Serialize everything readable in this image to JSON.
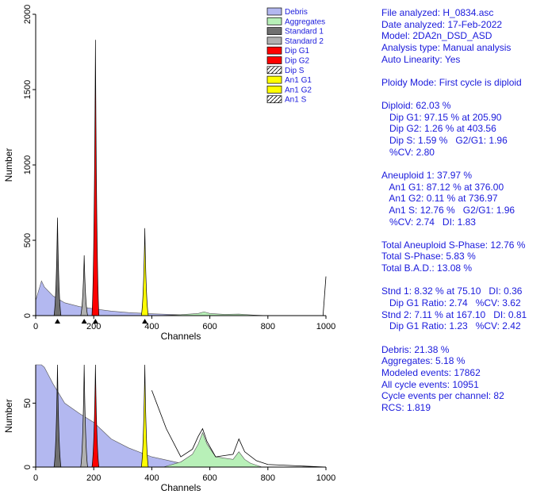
{
  "chart_data": [
    {
      "type": "area",
      "panel": "main histogram",
      "xlabel": "Channels",
      "ylabel": "Number",
      "xlim": [
        0,
        1000
      ],
      "ylim": [
        0,
        2000
      ],
      "x_ticks": [
        0,
        200,
        400,
        600,
        800,
        1000
      ],
      "y_ticks": [
        0,
        500,
        1000,
        1500,
        2000
      ],
      "marker_channels": [
        75.1,
        167.1,
        205.9,
        376.0
      ],
      "legend": [
        {
          "label": "Debris",
          "fill": "#b3b8f0",
          "pattern": "solid"
        },
        {
          "label": "Aggregates",
          "fill": "#b8f0b8",
          "pattern": "solid"
        },
        {
          "label": "Standard 1",
          "fill": "#707070",
          "pattern": "solid"
        },
        {
          "label": "Standard 2",
          "fill": "#b0b0b0",
          "pattern": "solid"
        },
        {
          "label": "Dip G1",
          "fill": "#ff0000",
          "pattern": "solid"
        },
        {
          "label": "Dip G2",
          "fill": "#ff0000",
          "pattern": "solid"
        },
        {
          "label": "Dip S",
          "fill": "#ffffff",
          "pattern": "hatch"
        },
        {
          "label": "An1 G1",
          "fill": "#ffff00",
          "pattern": "solid"
        },
        {
          "label": "An1 G2",
          "fill": "#ffff00",
          "pattern": "solid"
        },
        {
          "label": "An1 S",
          "fill": "#ffffff",
          "pattern": "hatch"
        }
      ],
      "series": [
        {
          "name": "Debris",
          "type": "area",
          "x": [
            0,
            20,
            30,
            60,
            100,
            150,
            200,
            260,
            320,
            400,
            500
          ],
          "y": [
            100,
            230,
            190,
            130,
            85,
            60,
            45,
            30,
            20,
            12,
            6
          ]
        },
        {
          "name": "Standard 1",
          "type": "peak",
          "center": 75.1,
          "height": 650
        },
        {
          "name": "Standard 2",
          "type": "peak",
          "center": 167.1,
          "height": 400
        },
        {
          "name": "Dip G1",
          "type": "peak",
          "center": 205.9,
          "height": 1830
        },
        {
          "name": "An1 G1",
          "type": "peak",
          "center": 376.0,
          "height": 580
        },
        {
          "name": "Aggregates",
          "type": "area",
          "x": [
            420,
            500,
            560,
            580,
            600,
            650,
            700,
            750,
            800
          ],
          "y": [
            0,
            6,
            14,
            25,
            14,
            8,
            10,
            4,
            0
          ]
        },
        {
          "name": "Data",
          "type": "line",
          "x": [
            990,
            1000
          ],
          "y": [
            0,
            260
          ]
        }
      ]
    },
    {
      "type": "area",
      "panel": "zoomed histogram",
      "xlabel": "Channels",
      "ylabel": "Number",
      "xlim": [
        0,
        1000
      ],
      "ylim": [
        0,
        80
      ],
      "x_ticks": [
        0,
        200,
        400,
        600,
        800,
        1000
      ],
      "y_ticks": [
        0,
        50
      ],
      "series": [
        {
          "name": "Debris",
          "type": "area",
          "x": [
            0,
            20,
            30,
            60,
            100,
            150,
            200,
            260,
            320,
            400,
            500
          ],
          "y": [
            80,
            80,
            78,
            65,
            50,
            42,
            35,
            22,
            15,
            8,
            3
          ]
        },
        {
          "name": "Standard 1",
          "type": "peak",
          "center": 75.1,
          "height": 80
        },
        {
          "name": "Standard 2",
          "type": "peak",
          "center": 167.1,
          "height": 80
        },
        {
          "name": "Dip G1",
          "type": "peak",
          "center": 205.9,
          "height": 80
        },
        {
          "name": "An1 G1",
          "type": "peak",
          "center": 376.0,
          "height": 80
        },
        {
          "name": "Aggregates",
          "type": "area",
          "x": [
            440,
            500,
            540,
            560,
            575,
            590,
            620,
            680,
            700,
            720,
            740,
            780
          ],
          "y": [
            0,
            4,
            10,
            18,
            27,
            18,
            8,
            6,
            12,
            6,
            3,
            0
          ]
        },
        {
          "name": "Data",
          "type": "line",
          "x": [
            400,
            450,
            500,
            540,
            560,
            575,
            590,
            620,
            680,
            700,
            720,
            760,
            800,
            900,
            1000
          ],
          "y": [
            60,
            30,
            8,
            14,
            24,
            30,
            20,
            8,
            10,
            22,
            12,
            5,
            2,
            1,
            0
          ]
        }
      ]
    }
  ],
  "report": {
    "file": "File analyzed: H_0834.asc",
    "date": "Date analyzed: 17-Feb-2022",
    "model": "Model: 2DA2n_DSD_ASD",
    "analysis_type": "Analysis type: Manual analysis",
    "auto_linearity": "Auto Linearity: Yes",
    "ploidy_mode": "Ploidy Mode: First cycle is diploid",
    "diploid": "Diploid: 62.03 %",
    "dip_g1": "   Dip G1: 97.15 % at 205.90",
    "dip_g2": "   Dip G2: 1.26 % at 403.56",
    "dip_s": "   Dip S: 1.59 %   G2/G1: 1.96",
    "dip_cv": "   %CV: 2.80",
    "aneuploid": "Aneuploid 1: 37.97 %",
    "an1_g1": "   An1 G1: 87.12 % at 376.00",
    "an1_g2": "   An1 G2: 0.11 % at 736.97",
    "an1_s": "   An1 S: 12.76 %   G2/G1: 1.96",
    "an1_cv": "   %CV: 2.74   DI: 1.83",
    "total_aneuploid_s": "Total Aneuploid S-Phase: 12.76 %",
    "total_s": "Total S-Phase: 5.83 %",
    "total_bad": "Total B.A.D.: 13.08 %",
    "stnd1": "Stnd 1: 8.32 % at 75.10   DI: 0.36",
    "stnd1_ratio": "   Dip G1 Ratio: 2.74   %CV: 3.62",
    "stnd2": "Stnd 2: 7.11 % at 167.10   DI: 0.81",
    "stnd2_ratio": "   Dip G1 Ratio: 1.23   %CV: 2.42",
    "debris": "Debris: 21.38 %",
    "aggregates": "Aggregates: 5.18 %",
    "modeled_events": "Modeled events: 17862",
    "all_cycle_events": "All cycle events: 10951",
    "cycle_events_per_channel": "Cycle events per channel: 82",
    "rcs": "RCS: 1.819"
  }
}
